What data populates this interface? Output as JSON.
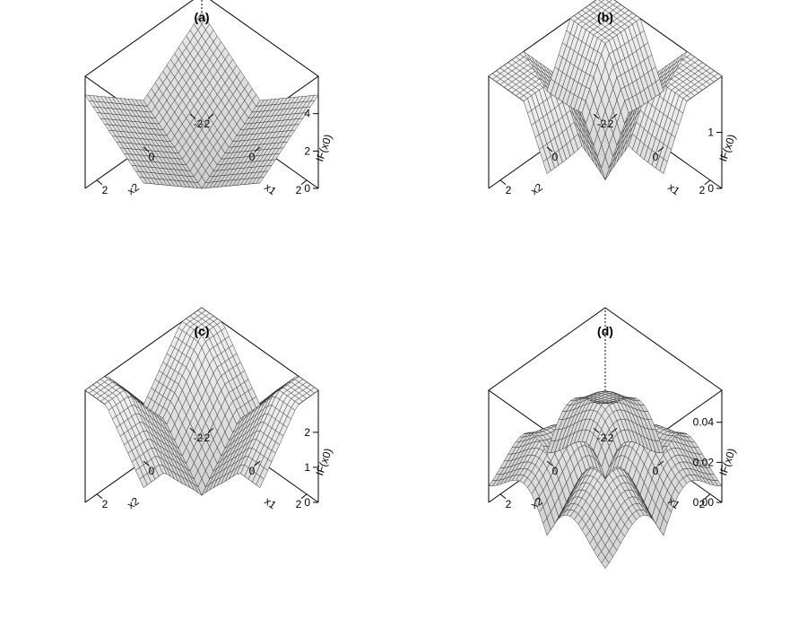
{
  "chart_data": [
    {
      "type": "surface",
      "panel": "(a)",
      "title": "(a)",
      "xlabel": "x1",
      "ylabel": "x2",
      "zlabel": "IF(x0)",
      "x_ticks": [
        "-2",
        "0",
        "2"
      ],
      "y_ticks": [
        "-2",
        "0",
        "2"
      ],
      "z_ticks": [
        "0",
        "2",
        "4"
      ],
      "xlim": [
        -2.5,
        2.5
      ],
      "ylim": [
        -2.5,
        2.5
      ],
      "zlim": [
        0,
        6
      ],
      "shape": "abs_sum",
      "surface_summary": {
        "min": 0,
        "max": 6
      }
    },
    {
      "type": "surface",
      "panel": "(b)",
      "title": "(b)",
      "xlabel": "x1",
      "ylabel": "x2",
      "zlabel": "IF(x0)",
      "x_ticks": [
        "-2",
        "0",
        "2"
      ],
      "y_ticks": [
        "-2",
        "0",
        "2"
      ],
      "z_ticks": [
        "0",
        "1"
      ],
      "xlim": [
        -2.5,
        2.5
      ],
      "ylim": [
        -2.5,
        2.5
      ],
      "zlim": [
        0,
        2
      ],
      "shape": "saturating_peaks",
      "surface_summary": {
        "min": 0,
        "max": 2
      }
    },
    {
      "type": "surface",
      "panel": "(c)",
      "title": "(c)",
      "xlabel": "x1",
      "ylabel": "x2",
      "zlabel": "IF(x0)",
      "x_ticks": [
        "-2",
        "0",
        "2"
      ],
      "y_ticks": [
        "-2",
        "0",
        "2"
      ],
      "z_ticks": [
        "0",
        "1",
        "2"
      ],
      "xlim": [
        -2.5,
        2.5
      ],
      "ylim": [
        -2.5,
        2.5
      ],
      "zlim": [
        0,
        3.2
      ],
      "shape": "saturating_peaks_high",
      "surface_summary": {
        "min": 0,
        "max": 3.2
      }
    },
    {
      "type": "surface",
      "panel": "(d)",
      "title": "(d)",
      "xlabel": "x1",
      "ylabel": "x2",
      "zlabel": "IF(x0)",
      "x_ticks": [
        "-2",
        "0",
        "2"
      ],
      "y_ticks": [
        "-2",
        "0",
        "2"
      ],
      "z_ticks": [
        "0.00",
        "0.02",
        "0.04"
      ],
      "xlim": [
        -2.5,
        2.5
      ],
      "ylim": [
        -2.5,
        2.5
      ],
      "zlim": [
        0,
        0.056
      ],
      "shape": "redescending_bumps",
      "surface_summary": {
        "min": 0,
        "max": 0.056
      }
    }
  ]
}
